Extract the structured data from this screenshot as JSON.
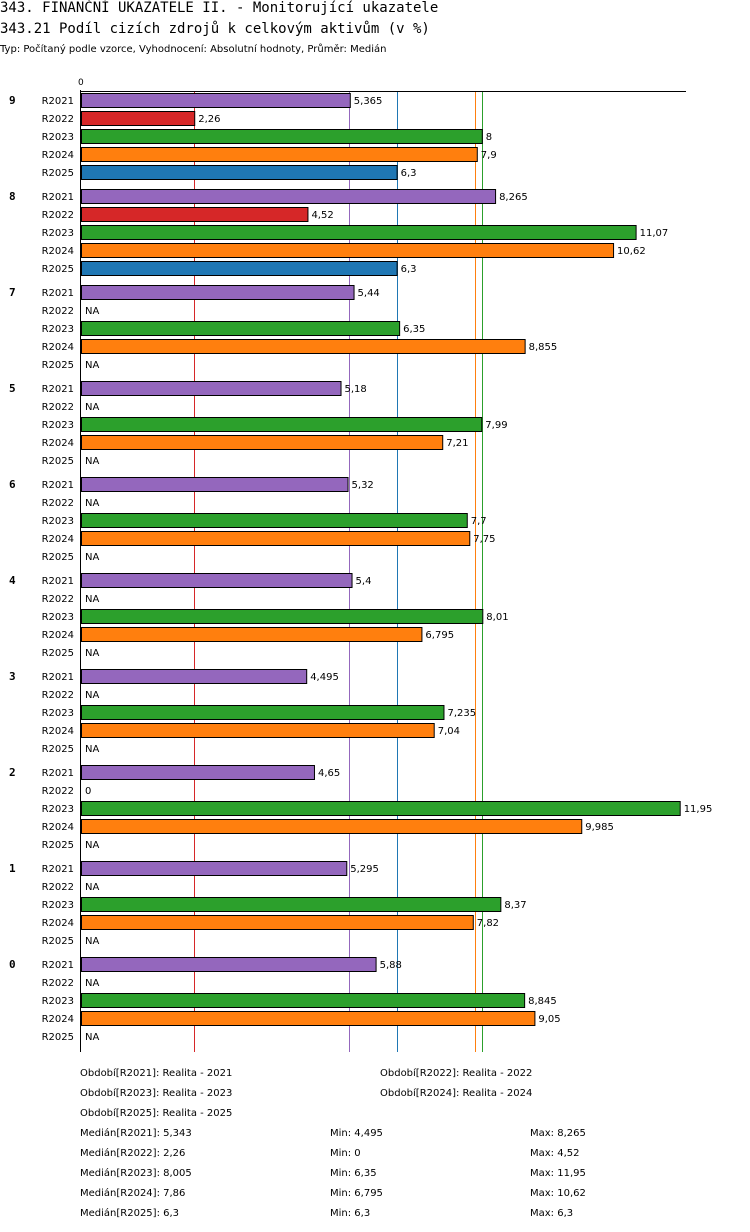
{
  "header": {
    "title": "343. FINANČNÍ UKAZATELE II. - Monitorující ukazatele",
    "subtitle": "343.21 Podíl cizích zdrojů k celkovým aktivům (v %)",
    "meta": "Typ: Počítaný podle vzorce, Vyhodnocení: Absolutní hodnoty, Průměr: Medián"
  },
  "colors": {
    "R2021": "#9467bd",
    "R2022": "#d62728",
    "R2023": "#2ca02c",
    "R2024": "#ff7f0e",
    "R2025": "#1f77b4"
  },
  "chart_data": {
    "type": "bar",
    "orientation": "horizontal",
    "axis_zero_label": "0",
    "xlim": [
      0,
      12.5
    ],
    "series_names": [
      "R2021",
      "R2022",
      "R2023",
      "R2024",
      "R2025"
    ],
    "groups": [
      {
        "label": "9",
        "values": [
          5.365,
          2.26,
          8,
          7.9,
          6.3
        ],
        "labels": [
          "5,365",
          "2,26",
          "8",
          "7,9",
          "6,3"
        ]
      },
      {
        "label": "8",
        "values": [
          8.265,
          4.52,
          11.07,
          10.62,
          6.3
        ],
        "labels": [
          "8,265",
          "4,52",
          "11,07",
          "10,62",
          "6,3"
        ]
      },
      {
        "label": "7",
        "values": [
          5.44,
          null,
          6.35,
          8.855,
          null
        ],
        "labels": [
          "5,44",
          "NA",
          "6,35",
          "8,855",
          "NA"
        ]
      },
      {
        "label": "5",
        "values": [
          5.18,
          null,
          7.99,
          7.21,
          null
        ],
        "labels": [
          "5,18",
          "NA",
          "7,99",
          "7,21",
          "NA"
        ]
      },
      {
        "label": "6",
        "values": [
          5.32,
          null,
          7.7,
          7.75,
          null
        ],
        "labels": [
          "5,32",
          "NA",
          "7,7",
          "7,75",
          "NA"
        ]
      },
      {
        "label": "4",
        "values": [
          5.4,
          null,
          8.01,
          6.795,
          null
        ],
        "labels": [
          "5,4",
          "NA",
          "8,01",
          "6,795",
          "NA"
        ]
      },
      {
        "label": "3",
        "values": [
          4.495,
          null,
          7.235,
          7.04,
          null
        ],
        "labels": [
          "4,495",
          "NA",
          "7,235",
          "7,04",
          "NA"
        ]
      },
      {
        "label": "2",
        "values": [
          4.65,
          0,
          11.95,
          9.985,
          null
        ],
        "labels": [
          "4,65",
          "0",
          "11,95",
          "9,985",
          "NA"
        ]
      },
      {
        "label": "1",
        "values": [
          5.295,
          null,
          8.37,
          7.82,
          null
        ],
        "labels": [
          "5,295",
          "NA",
          "8,37",
          "7,82",
          "NA"
        ]
      },
      {
        "label": "0",
        "values": [
          5.88,
          null,
          8.845,
          9.05,
          null
        ],
        "labels": [
          "5,88",
          "NA",
          "8,845",
          "9,05",
          "NA"
        ]
      }
    ],
    "median_lines": [
      {
        "series": "R2021",
        "value": 5.343
      },
      {
        "series": "R2022",
        "value": 2.26
      },
      {
        "series": "R2023",
        "value": 8.005
      },
      {
        "series": "R2024",
        "value": 7.86
      },
      {
        "series": "R2025",
        "value": 6.3
      }
    ]
  },
  "legend": {
    "periods": [
      "Období[R2021]: Realita - 2021",
      "Období[R2022]: Realita - 2022",
      "Období[R2023]: Realita - 2023",
      "Období[R2024]: Realita - 2024",
      "Období[R2025]: Realita - 2025"
    ],
    "stats": [
      {
        "median": "Medián[R2021]: 5,343",
        "min": "Min: 4,495",
        "max": "Max: 8,265"
      },
      {
        "median": "Medián[R2022]: 2,26",
        "min": "Min: 0",
        "max": "Max: 4,52"
      },
      {
        "median": "Medián[R2023]: 8,005",
        "min": "Min: 6,35",
        "max": "Max: 11,95"
      },
      {
        "median": "Medián[R2024]: 7,86",
        "min": "Min: 6,795",
        "max": "Max: 10,62"
      },
      {
        "median": "Medián[R2025]: 6,3",
        "min": "Min: 6,3",
        "max": "Max: 6,3"
      }
    ]
  }
}
